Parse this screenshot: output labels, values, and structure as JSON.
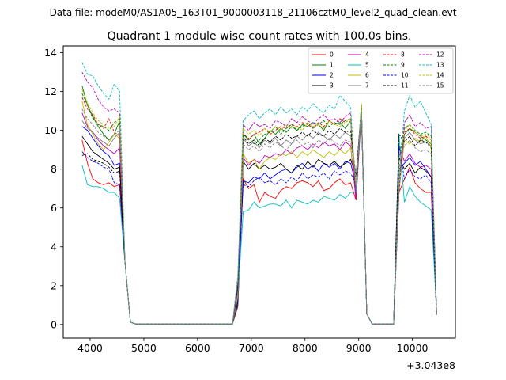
{
  "chart_data": {
    "type": "line",
    "suptitle": "Data file: modeM0/AS1A05_163T01_9000003118_21106cztM0_level2_quad_clean.evt",
    "title": "Quadrant 1 module wise count rates with 100.0s bins.",
    "xlabel": "",
    "ylabel": "",
    "x_offset_label": "+3.043e8",
    "xlim": [
      3500,
      10800
    ],
    "ylim": [
      -0.7,
      14.35
    ],
    "xticks": [
      4000,
      5000,
      6000,
      7000,
      8000,
      9000,
      10000
    ],
    "xtick_labels": [
      "4000",
      "5000",
      "6000",
      "7000",
      "8000",
      "9000",
      "10000"
    ],
    "yticks": [
      0,
      2,
      4,
      6,
      8,
      10,
      12,
      14
    ],
    "ytick_labels": [
      "0",
      "2",
      "4",
      "6",
      "8",
      "10",
      "12",
      "14"
    ],
    "legend_position": "upper right",
    "legend_columns": 4,
    "x": [
      3850,
      3950,
      4050,
      4150,
      4250,
      4350,
      4450,
      4550,
      4650,
      4750,
      4850,
      4950,
      5050,
      5150,
      5250,
      5350,
      5450,
      5550,
      5650,
      5750,
      5850,
      5950,
      6050,
      6150,
      6250,
      6350,
      6450,
      6550,
      6650,
      6750,
      6850,
      6950,
      7050,
      7150,
      7250,
      7350,
      7450,
      7550,
      7650,
      7750,
      7850,
      7950,
      8050,
      8150,
      8250,
      8350,
      8450,
      8550,
      8650,
      8750,
      8850,
      8950,
      9050,
      9150,
      9250,
      9350,
      9450,
      9550,
      9650,
      9750,
      9850,
      9950,
      10050,
      10150,
      10250,
      10350,
      10450,
      10550
    ],
    "series": [
      {
        "name": "0",
        "color": "#ff0000",
        "dash": "solid",
        "seg1": [
          9.5,
          8.3,
          7.5,
          7.3,
          7.2,
          7.3,
          7.1,
          7.2
        ],
        "seg2": [
          7.5,
          7.0,
          7.2,
          6.3,
          6.8,
          6.6,
          6.5,
          6.9,
          7.1,
          7.0,
          7.3,
          7.4,
          7.3,
          7.1,
          7.4,
          6.9,
          7.0,
          7.3,
          7.5,
          7.2,
          7.3
        ],
        "seg3": [
          7.5,
          8.1,
          7.3,
          7.0,
          6.8,
          6.8
        ]
      },
      {
        "name": "1",
        "color": "#008000",
        "dash": "solid",
        "seg1": [
          12.3,
          11.3,
          10.7,
          10.2,
          9.8,
          9.5,
          9.8,
          10.5
        ],
        "seg2": [
          9.8,
          9.5,
          9.8,
          9.3,
          9.6,
          10.0,
          9.8,
          10.1,
          9.9,
          10.2,
          10.0,
          10.3,
          10.2,
          10.4,
          10.3,
          10.0,
          10.5,
          10.3,
          10.4,
          10.1,
          10.5
        ],
        "seg3": [
          9.8,
          10.1,
          9.9,
          9.7,
          9.5,
          9.3
        ]
      },
      {
        "name": "2",
        "color": "#0000ff",
        "dash": "solid",
        "seg1": [
          10.2,
          10.0,
          9.6,
          9.2,
          8.9,
          8.7,
          8.2,
          8.3
        ],
        "seg2": [
          7.4,
          7.3,
          7.6,
          7.5,
          7.8,
          7.5,
          7.7,
          7.9,
          8.0,
          7.8,
          8.1,
          8.3,
          8.0,
          8.2,
          7.9,
          8.3,
          8.1,
          8.3,
          8.0,
          8.4,
          8.3
        ],
        "seg3": [
          8.3,
          8.6,
          8.2,
          8.4,
          8.0,
          7.6
        ]
      },
      {
        "name": "3",
        "color": "#000000",
        "dash": "solid",
        "seg1": [
          9.7,
          9.3,
          8.9,
          8.7,
          8.5,
          8.3,
          8.0,
          8.1
        ],
        "seg2": [
          8.4,
          8.0,
          8.3,
          8.0,
          8.2,
          8.0,
          8.1,
          8.3,
          8.0,
          7.8,
          8.2,
          8.0,
          8.4,
          8.1,
          8.5,
          8.3,
          8.2,
          8.4,
          8.1,
          8.3,
          8.5
        ],
        "seg3": [
          8.0,
          8.3,
          7.8,
          8.1,
          7.9,
          7.6
        ]
      },
      {
        "name": "4",
        "color": "#bf00bf",
        "dash": "solid",
        "seg1": [
          10.9,
          10.2,
          9.9,
          9.5,
          9.2,
          9.0,
          8.8,
          9.1
        ],
        "seg2": [
          8.6,
          8.2,
          8.5,
          8.3,
          8.7,
          8.6,
          8.8,
          8.7,
          9.0,
          8.8,
          9.1,
          9.2,
          9.0,
          9.3,
          9.1,
          9.4,
          9.2,
          9.3,
          9.0,
          9.4,
          9.2
        ],
        "seg3": [
          8.4,
          8.8,
          8.3,
          8.1,
          8.2,
          8.0
        ]
      },
      {
        "name": "5",
        "color": "#00bfbf",
        "dash": "solid",
        "seg1": [
          8.2,
          7.2,
          7.1,
          7.1,
          7.0,
          6.8,
          6.8,
          6.5
        ],
        "seg2": [
          5.8,
          5.9,
          6.3,
          6.0,
          6.1,
          6.2,
          6.2,
          6.1,
          6.4,
          6.0,
          6.4,
          6.3,
          6.2,
          6.4,
          6.3,
          6.6,
          6.5,
          6.4,
          6.7,
          6.5,
          6.8
        ],
        "seg3": [
          6.3,
          7.1,
          6.6,
          6.3,
          6.1,
          5.9
        ]
      },
      {
        "name": "6",
        "color": "#bfbf00",
        "dash": "solid",
        "seg1": [
          11.5,
          10.3,
          9.8,
          9.3,
          9.0,
          9.4,
          9.8,
          9.6
        ],
        "seg2": [
          8.8,
          8.3,
          8.5,
          8.0,
          8.4,
          8.6,
          8.5,
          8.8,
          8.7,
          8.9,
          8.6,
          8.9,
          8.7,
          9.0,
          8.8,
          8.6,
          8.9,
          8.7,
          9.0,
          8.8,
          9.1
        ],
        "seg3": [
          9.5,
          9.3,
          9.6,
          9.4,
          9.7,
          9.1
        ]
      },
      {
        "name": "7",
        "color": "#808080",
        "dash": "solid",
        "seg1": [
          10.5,
          10.1,
          9.9,
          9.6,
          9.4,
          9.2,
          9.6,
          9.9
        ],
        "seg2": [
          9.6,
          9.2,
          9.4,
          9.1,
          9.5,
          9.3,
          9.6,
          9.2,
          9.5,
          9.3,
          9.7,
          9.5,
          9.8,
          9.6,
          9.9,
          9.7,
          9.5,
          9.8,
          9.6,
          9.9,
          9.7
        ],
        "seg3": [
          9.6,
          9.9,
          9.5,
          9.3,
          9.4,
          9.2
        ]
      },
      {
        "name": "8",
        "color": "#ff0000",
        "dash": "dashed",
        "seg1": [
          11.7,
          11.1,
          10.8,
          10.3,
          10.1,
          10.6,
          9.9,
          9.7
        ],
        "seg2": [
          9.9,
          9.5,
          9.8,
          9.9,
          10.1,
          9.8,
          10.0,
          10.2,
          10.1,
          10.3,
          10.2,
          10.4,
          10.3,
          10.1,
          10.4,
          10.2,
          10.5,
          10.3,
          10.6,
          10.4,
          10.6
        ],
        "seg3": [
          9.9,
          10.1,
          9.8,
          9.6,
          9.7,
          9.5
        ]
      },
      {
        "name": "9",
        "color": "#008000",
        "dash": "dashed",
        "seg1": [
          11.9,
          11.3,
          10.6,
          10.3,
          10.2,
          10.0,
          10.4,
          10.6
        ],
        "seg2": [
          9.8,
          9.6,
          9.3,
          9.5,
          9.8,
          9.9,
          10.2,
          9.8,
          10.1,
          10.3,
          10.0,
          10.2,
          10.4,
          10.1,
          10.3,
          10.5,
          10.2,
          10.4,
          10.3,
          10.5,
          10.6
        ],
        "seg3": [
          10.1,
          10.3,
          10.0,
          9.8,
          9.9,
          9.7
        ]
      },
      {
        "name": "10",
        "color": "#0000ff",
        "dash": "dashed",
        "seg1": [
          8.9,
          8.6,
          8.4,
          8.3,
          8.1,
          8.0,
          7.3,
          7.2
        ],
        "seg2": [
          7.2,
          7.1,
          7.4,
          7.6,
          7.3,
          7.4,
          7.2,
          7.5,
          7.3,
          7.6,
          7.4,
          7.8,
          7.5,
          7.7,
          7.6,
          7.8,
          7.5,
          7.9,
          7.7,
          7.9,
          7.8
        ],
        "seg3": [
          7.5,
          8.0,
          7.6,
          7.5,
          7.7,
          7.3
        ]
      },
      {
        "name": "11",
        "color": "#000000",
        "dash": "dashed",
        "seg1": [
          8.7,
          8.8,
          8.5,
          8.4,
          8.3,
          8.1,
          7.8,
          7.9
        ],
        "seg2": [
          9.7,
          9.3,
          9.5,
          9.2,
          9.6,
          9.4,
          9.7,
          9.5,
          9.8,
          9.6,
          9.7,
          9.9,
          9.7,
          10.0,
          9.8,
          9.7,
          10.0,
          9.8,
          10.1,
          9.9,
          10.0
        ],
        "seg3": [
          9.4,
          9.7,
          9.2,
          9.5,
          9.4,
          9.1
        ]
      },
      {
        "name": "12",
        "color": "#bf00bf",
        "dash": "dashed",
        "seg1": [
          13.0,
          12.5,
          12.2,
          11.6,
          11.2,
          11.0,
          11.1,
          10.9
        ],
        "seg2": [
          10.3,
          10.0,
          10.4,
          10.2,
          10.3,
          10.1,
          10.5,
          10.4,
          10.2,
          10.6,
          10.4,
          10.7,
          10.5,
          10.3,
          10.6,
          10.8,
          10.5,
          10.6,
          10.4,
          10.7,
          10.9
        ],
        "seg3": [
          10.4,
          10.8,
          10.2,
          10.4,
          10.1,
          10.2
        ]
      },
      {
        "name": "13",
        "color": "#00bfbf",
        "dash": "dashed",
        "seg1": [
          13.5,
          12.9,
          12.8,
          12.3,
          11.9,
          11.6,
          12.4,
          12.0
        ],
        "seg2": [
          10.5,
          10.8,
          11.0,
          10.6,
          10.9,
          11.1,
          10.8,
          11.2,
          10.9,
          11.1,
          10.8,
          11.2,
          11.0,
          11.4,
          11.1,
          10.9,
          11.3,
          11.1,
          11.8,
          11.5,
          11.2
        ],
        "seg3": [
          11.0,
          11.8,
          11.2,
          11.5,
          10.9,
          10.3
        ]
      },
      {
        "name": "14",
        "color": "#bfbf00",
        "dash": "dashed",
        "seg1": [
          12.1,
          11.4,
          10.9,
          10.5,
          10.3,
          10.1,
          10.2,
          10.7
        ],
        "seg2": [
          10.1,
          9.8,
          10.0,
          9.7,
          10.1,
          9.9,
          10.2,
          10.0,
          10.3,
          10.1,
          10.2,
          10.0,
          10.4,
          10.2,
          10.3,
          10.1,
          10.5,
          10.3,
          10.2,
          10.4,
          10.6
        ],
        "seg3": [
          10.0,
          10.3,
          9.9,
          9.7,
          9.8,
          9.6
        ]
      },
      {
        "name": "15",
        "color": "#808080",
        "dash": "dashed",
        "seg1": [
          11.1,
          10.6,
          10.3,
          9.9,
          9.7,
          9.5,
          9.8,
          10.0
        ],
        "seg2": [
          9.3,
          9.0,
          9.2,
          8.9,
          9.3,
          9.1,
          9.4,
          9.2,
          9.0,
          9.3,
          9.5,
          9.2,
          9.4,
          9.1,
          9.5,
          9.3,
          9.6,
          9.4,
          9.2,
          9.5,
          9.4
        ],
        "seg3": [
          9.2,
          9.5,
          9.1,
          8.9,
          9.0,
          8.8
        ]
      }
    ]
  }
}
